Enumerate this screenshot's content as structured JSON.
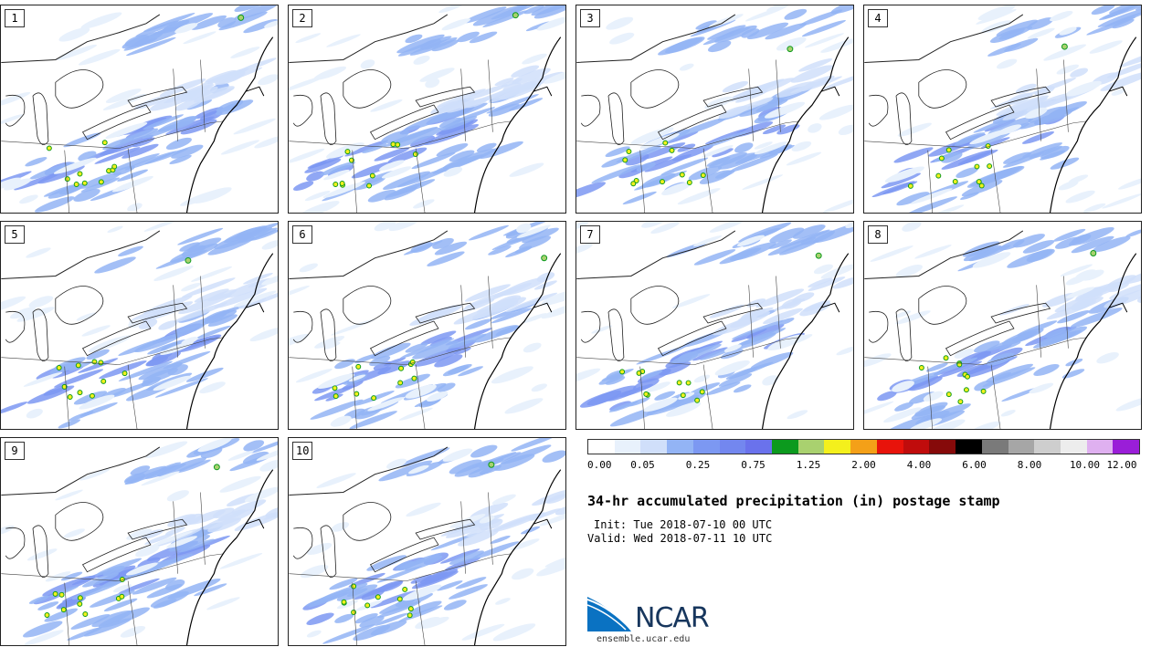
{
  "panels": [
    {
      "label": "1"
    },
    {
      "label": "2"
    },
    {
      "label": "3"
    },
    {
      "label": "4"
    },
    {
      "label": "5"
    },
    {
      "label": "6"
    },
    {
      "label": "7"
    },
    {
      "label": "8"
    },
    {
      "label": "9"
    },
    {
      "label": "10"
    }
  ],
  "legend": {
    "colors": [
      "#ffffff",
      "#e8f1fc",
      "#d0dffa",
      "#93b4f5",
      "#7c98f2",
      "#7387ef",
      "#6a72ec",
      "#0c9a1e",
      "#a9d16f",
      "#f4f01c",
      "#f4a018",
      "#e8130b",
      "#c00c0c",
      "#860a0a",
      "#000000",
      "#7a7a7a",
      "#a6a6a6",
      "#cecece",
      "#ededed",
      "#dfb0f0",
      "#9a1ed8"
    ],
    "labels": [
      "0.00",
      "0.05",
      "0.25",
      "0.75",
      "1.25",
      "2.00",
      "4.00",
      "6.00",
      "8.00",
      "10.00",
      "12.00"
    ]
  },
  "title": "34-hr accumulated precipitation (in) postage stamp",
  "init": "Init: Tue 2018-07-10 00 UTC",
  "valid": "Valid: Wed 2018-07-11 10 UTC",
  "logo": {
    "name": "ncar-logo",
    "text": "NCAR",
    "url": "ensemble.ucar.edu"
  }
}
